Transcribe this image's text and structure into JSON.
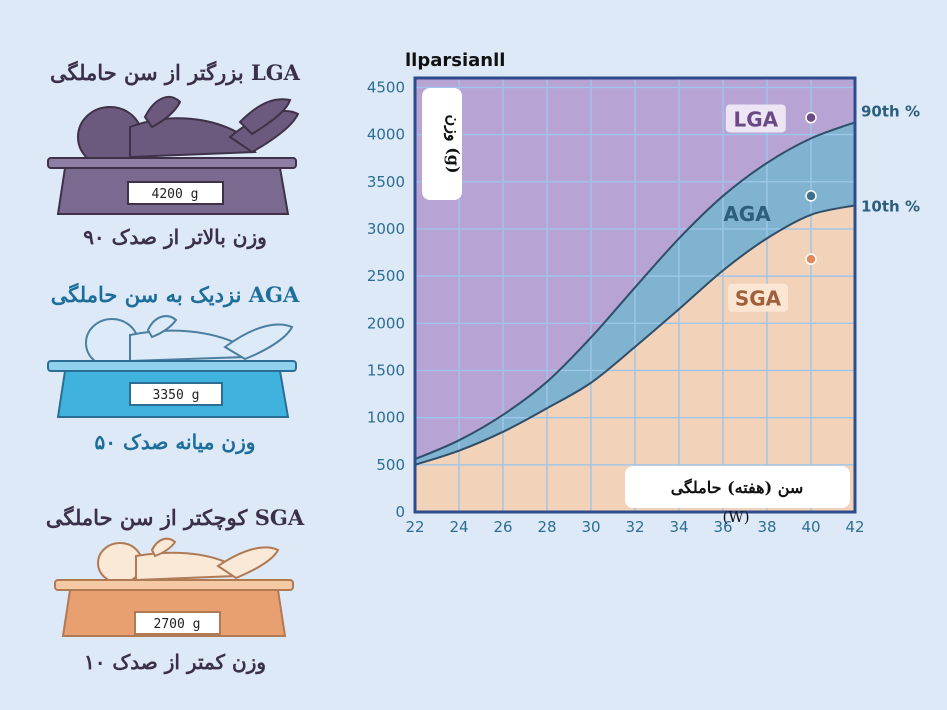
{
  "panels": {
    "lga": {
      "title": "بزرگتر از سن حاملگی LGA",
      "scale_reading": "4200 g",
      "caption": "وزن بالاتر از صدک ۹۰",
      "color": "#6b5a7d"
    },
    "aga": {
      "title": "نزدیک به سن حاملگی AGA",
      "scale_reading": "3350 g",
      "caption": "وزن میانه صدک ۵۰",
      "color": "#3fb3dd"
    },
    "sga": {
      "title": "کوچکتر از سن حاملگی SGA",
      "scale_reading": "2700 g",
      "caption": "وزن کمتر از صدک ۱۰",
      "color": "#e8a070"
    }
  },
  "brand": "llparsianll",
  "chart_data": {
    "type": "area",
    "ylabel": "وزن (g)",
    "xlabel": "سن (هفته) حاملگی",
    "xunit": "(W)",
    "x_ticks": [
      22,
      24,
      26,
      28,
      30,
      32,
      34,
      36,
      38,
      40,
      42
    ],
    "y_ticks": [
      0,
      500,
      1000,
      1500,
      2000,
      2500,
      3000,
      3500,
      4000,
      4500
    ],
    "xlim": [
      22,
      42
    ],
    "ylim": [
      0,
      4600
    ],
    "grid": true,
    "x": [
      22,
      24,
      26,
      28,
      30,
      32,
      34,
      36,
      38,
      40,
      42
    ],
    "series": [
      {
        "name": "10th %",
        "values": [
          500,
          650,
          850,
          1100,
          1370,
          1750,
          2150,
          2560,
          2900,
          3150,
          3250
        ]
      },
      {
        "name": "90th %",
        "values": [
          560,
          760,
          1030,
          1380,
          1850,
          2380,
          2900,
          3350,
          3700,
          3960,
          4130
        ]
      }
    ],
    "region_labels": [
      {
        "text": "LGA",
        "x": 39.4,
        "y": 4150
      },
      {
        "text": "AGA",
        "x": 39.0,
        "y": 3150
      },
      {
        "text": "SGA",
        "x": 39.5,
        "y": 2250
      }
    ],
    "points": [
      {
        "x": 40,
        "y": 4180,
        "color": "#6a4a85"
      },
      {
        "x": 40,
        "y": 3350,
        "color": "#3f6e8a"
      },
      {
        "x": 40,
        "y": 2680,
        "color": "#e2885a"
      }
    ],
    "colors": {
      "lga_region": "#b8a3d5",
      "aga_band": "#7fb3cf",
      "sga_region": "#f2d2b8",
      "grid": "#9ec6ea",
      "axis_text": "#2c6e93",
      "frame": "#2e4b8c"
    }
  }
}
